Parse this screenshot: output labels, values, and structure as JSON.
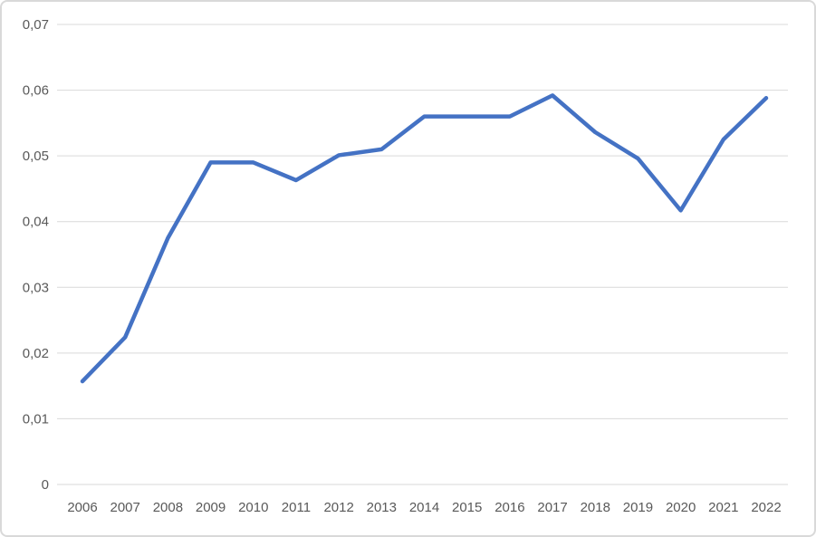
{
  "chart_data": {
    "type": "line",
    "title": "",
    "xlabel": "",
    "ylabel": "",
    "categories": [
      "2006",
      "2007",
      "2008",
      "2009",
      "2010",
      "2011",
      "2012",
      "2013",
      "2014",
      "2015",
      "2016",
      "2017",
      "2018",
      "2019",
      "2020",
      "2021",
      "2022"
    ],
    "values": [
      0.0157,
      0.0224,
      0.0375,
      0.049,
      0.049,
      0.0463,
      0.0501,
      0.051,
      0.056,
      0.056,
      0.056,
      0.0592,
      0.0536,
      0.0496,
      0.0417,
      0.0525,
      0.0588
    ],
    "ylim": [
      0,
      0.07
    ],
    "y_tick_step": 0.01,
    "y_tick_labels": [
      "0,07",
      "0,06",
      "0,05",
      "0,04",
      "0,03",
      "0,02",
      "0,01",
      "0"
    ],
    "decimal_separator": ",",
    "grid": true,
    "legend_position": "none",
    "colors": {
      "line": "#4472C4",
      "gridline": "#d9d9d9",
      "tick_label": "#595959",
      "background": "#ffffff",
      "border": "#d9d9d9"
    }
  }
}
